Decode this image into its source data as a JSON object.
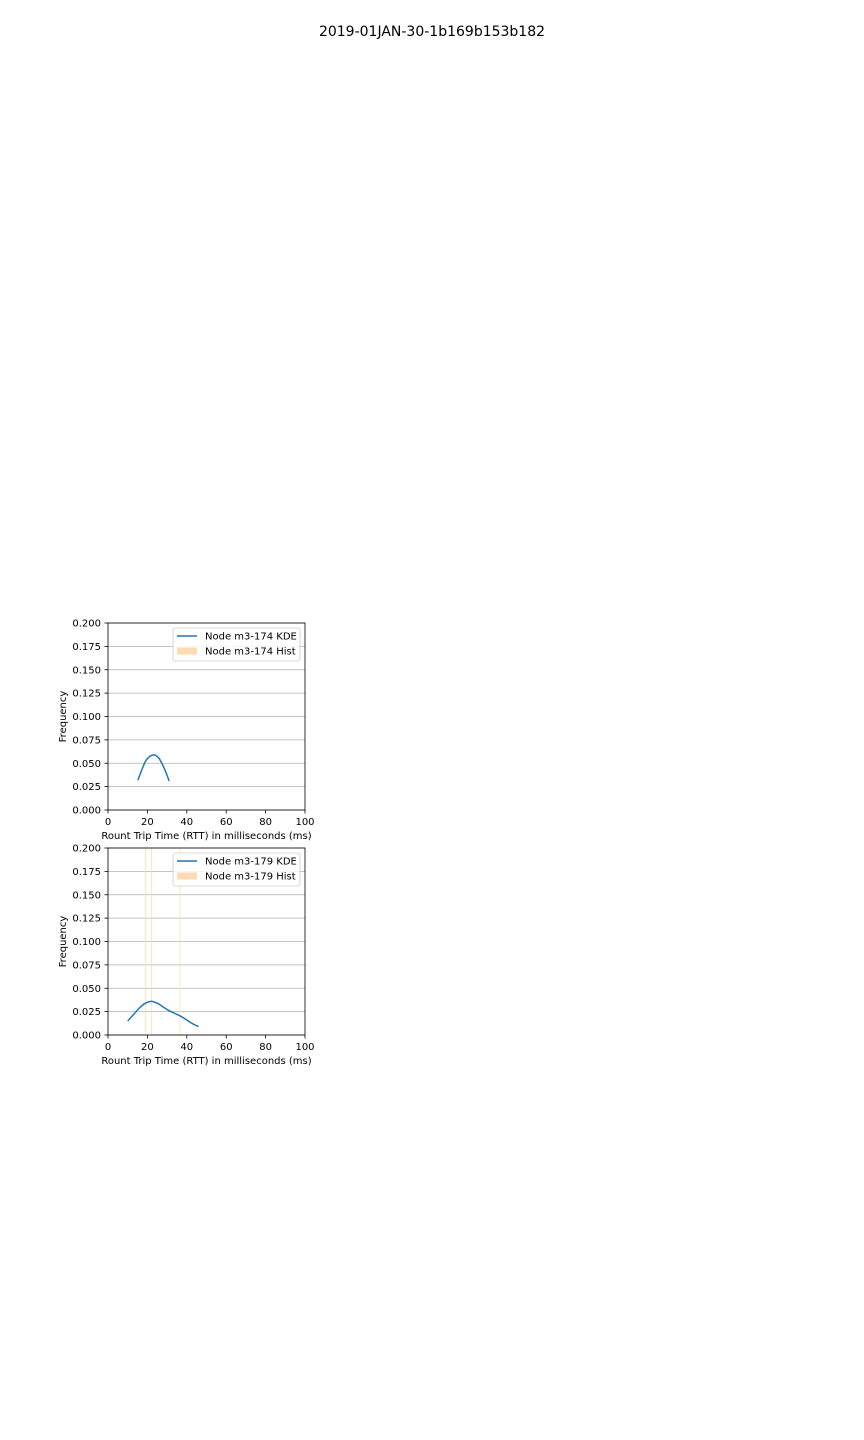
{
  "figure": {
    "title": "2019-01JAN-30-1b169b153b182"
  },
  "chart_data": [
    {
      "type": "line",
      "xlabel": "Rount Trip Time (RTT) in milliseconds (ms)",
      "ylabel": "Frequency",
      "xlim": [
        0,
        100
      ],
      "ylim": [
        0,
        0.2
      ],
      "xticks": [
        "0",
        "20",
        "40",
        "60",
        "80",
        "100"
      ],
      "yticks": [
        "0.000",
        "0.025",
        "0.050",
        "0.075",
        "0.100",
        "0.125",
        "0.150",
        "0.175",
        "0.200"
      ],
      "grid": "horizontal",
      "legend_position": "top-right",
      "series": [
        {
          "name": "Node m3-174 KDE",
          "kind": "line",
          "color": "#1f77b4",
          "x": [
            15.2,
            17,
            19,
            21,
            23,
            24.5,
            26,
            28,
            30,
            31
          ],
          "y": [
            0.032,
            0.042,
            0.052,
            0.057,
            0.059,
            0.058,
            0.055,
            0.047,
            0.037,
            0.031
          ]
        },
        {
          "name": "Node m3-174 Hist",
          "kind": "hist",
          "color": "#ffdab3",
          "x": [],
          "y": []
        }
      ]
    },
    {
      "type": "line",
      "xlabel": "Rount Trip Time (RTT) in milliseconds (ms)",
      "ylabel": "Frequency",
      "xlim": [
        0,
        100
      ],
      "ylim": [
        0,
        0.2
      ],
      "xticks": [
        "0",
        "20",
        "40",
        "60",
        "80",
        "100"
      ],
      "yticks": [
        "0.000",
        "0.025",
        "0.050",
        "0.075",
        "0.100",
        "0.125",
        "0.150",
        "0.175",
        "0.200"
      ],
      "grid": "horizontal",
      "legend_position": "top-right",
      "series": [
        {
          "name": "Node m3-179 KDE",
          "kind": "line",
          "color": "#1f77b4",
          "x": [
            10,
            13,
            16,
            19,
            22,
            25,
            28,
            31,
            34,
            37,
            40,
            43,
            46
          ],
          "y": [
            0.015,
            0.022,
            0.029,
            0.034,
            0.036,
            0.034,
            0.03,
            0.026,
            0.023,
            0.02,
            0.016,
            0.012,
            0.009
          ]
        },
        {
          "name": "Node m3-179 Hist",
          "kind": "hist",
          "color": "#ffdab3",
          "bars": [
            {
              "x0": 18.8,
              "x1": 19.2,
              "y": 0.2
            },
            {
              "x0": 21.8,
              "x1": 22.2,
              "y": 0.2
            },
            {
              "x0": 36.3,
              "x1": 36.7,
              "y": 0.2
            }
          ]
        }
      ]
    }
  ]
}
